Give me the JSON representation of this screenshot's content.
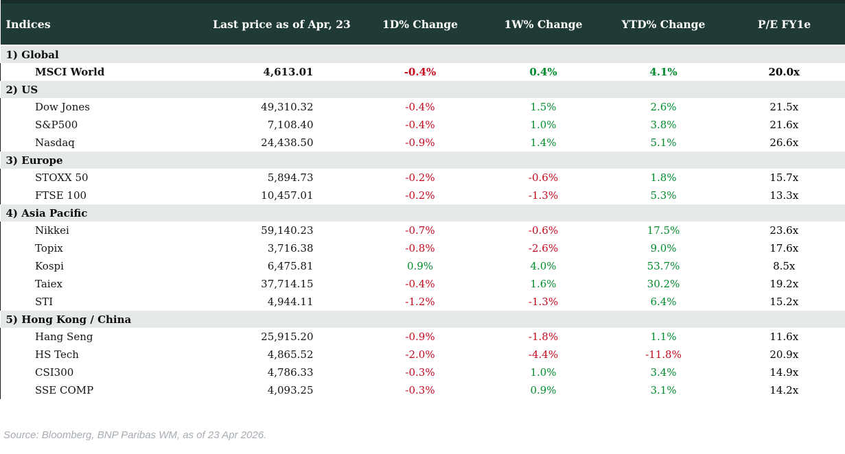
{
  "chart_data": {
    "type": "table",
    "title": "Indices",
    "columns": [
      "Indices",
      "Last price as of Apr, 23",
      "1D% Change",
      "1W% Change",
      "YTD% Change",
      "P/E FY1e"
    ],
    "sections": [
      {
        "label": "1) Global",
        "rows": [
          {
            "name": "MSCI World",
            "last_price": "4,613.01",
            "d1": "-0.4%",
            "w1": "0.4%",
            "ytd": "4.1%",
            "pe": "20.0x",
            "bold": true
          }
        ]
      },
      {
        "label": "2) US",
        "rows": [
          {
            "name": "Dow Jones",
            "last_price": "49,310.32",
            "d1": "-0.4%",
            "w1": "1.5%",
            "ytd": "2.6%",
            "pe": "21.5x"
          },
          {
            "name": "S&P500",
            "last_price": "7,108.40",
            "d1": "-0.4%",
            "w1": "1.0%",
            "ytd": "3.8%",
            "pe": "21.6x"
          },
          {
            "name": "Nasdaq",
            "last_price": "24,438.50",
            "d1": "-0.9%",
            "w1": "1.4%",
            "ytd": "5.1%",
            "pe": "26.6x"
          }
        ]
      },
      {
        "label": "3) Europe",
        "rows": [
          {
            "name": "STOXX 50",
            "last_price": "5,894.73",
            "d1": "-0.2%",
            "w1": "-0.6%",
            "ytd": "1.8%",
            "pe": "15.7x"
          },
          {
            "name": "FTSE 100",
            "last_price": "10,457.01",
            "d1": "-0.2%",
            "w1": "-1.3%",
            "ytd": "5.3%",
            "pe": "13.3x"
          }
        ]
      },
      {
        "label": "4) Asia Pacific",
        "rows": [
          {
            "name": "Nikkei",
            "last_price": "59,140.23",
            "d1": "-0.7%",
            "w1": "-0.6%",
            "ytd": "17.5%",
            "pe": "23.6x"
          },
          {
            "name": "Topix",
            "last_price": "3,716.38",
            "d1": "-0.8%",
            "w1": "-2.6%",
            "ytd": "9.0%",
            "pe": "17.6x"
          },
          {
            "name": "Kospi",
            "last_price": "6,475.81",
            "d1": "0.9%",
            "w1": "4.0%",
            "ytd": "53.7%",
            "pe": "8.5x"
          },
          {
            "name": "Taiex",
            "last_price": "37,714.15",
            "d1": "-0.4%",
            "w1": "1.6%",
            "ytd": "30.2%",
            "pe": "19.2x"
          },
          {
            "name": "STI",
            "last_price": "4,944.11",
            "d1": "-1.2%",
            "w1": "-1.3%",
            "ytd": "6.4%",
            "pe": "15.2x"
          }
        ]
      },
      {
        "label": "5) Hong Kong / China",
        "rows": [
          {
            "name": "Hang Seng",
            "last_price": "25,915.20",
            "d1": "-0.9%",
            "w1": "-1.8%",
            "ytd": "1.1%",
            "pe": "11.6x"
          },
          {
            "name": "HS Tech",
            "last_price": "4,865.52",
            "d1": "-2.0%",
            "w1": "-4.4%",
            "ytd": "-11.8%",
            "pe": "20.9x"
          },
          {
            "name": "CSI300",
            "last_price": "4,786.33",
            "d1": "-0.3%",
            "w1": "1.0%",
            "ytd": "3.4%",
            "pe": "14.9x"
          },
          {
            "name": "SSE COMP",
            "last_price": "4,093.25",
            "d1": "-0.3%",
            "w1": "0.9%",
            "ytd": "3.1%",
            "pe": "14.2x"
          }
        ]
      }
    ],
    "layout": {
      "grid": false,
      "section_rows_shaded": true,
      "negative_color": "#c40a1e",
      "positive_color": "#008c2d"
    }
  },
  "footer": {
    "source": "Source: Bloomberg, BNP Paribas WM, as of 23 Apr 2026."
  },
  "colors": {
    "header_bg": "#203b35",
    "header_top_strip": "#172c26",
    "section_bg": "#e4e9e5",
    "negative": "#c40a1e",
    "positive": "#008c2d",
    "footer_text": "#a6acb3"
  }
}
